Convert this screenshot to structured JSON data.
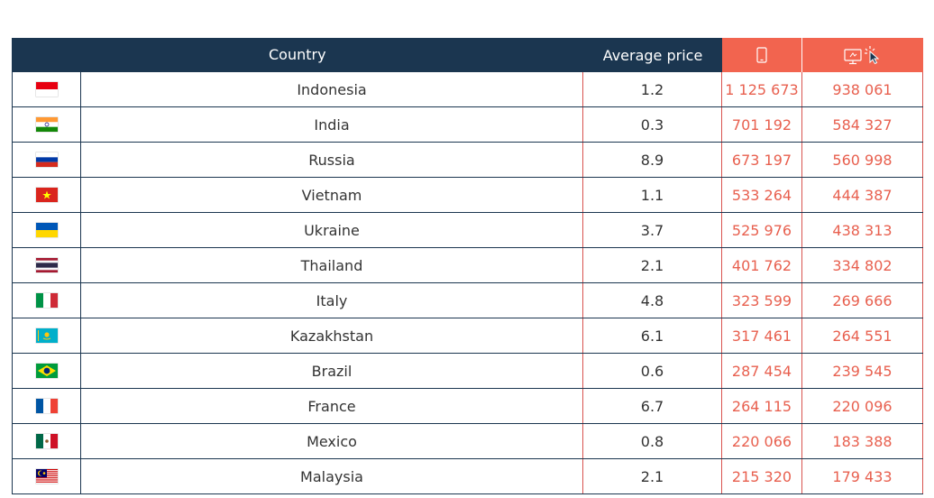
{
  "header": {
    "country_label": "Country",
    "avg_price_label": "Average price",
    "mobile_icon": "mobile-phone-icon",
    "desktop_icon": "desktop-click-icon",
    "bg_color": "#1b3650",
    "accent_color": "#f2644f"
  },
  "rows": [
    {
      "flag": "indonesia",
      "country": "Indonesia",
      "avg": "1.2",
      "mobile": "1 125 673",
      "desktop": "938 061"
    },
    {
      "flag": "india",
      "country": "India",
      "avg": "0.3",
      "mobile": "701 192",
      "desktop": "584 327"
    },
    {
      "flag": "russia",
      "country": "Russia",
      "avg": "8.9",
      "mobile": "673 197",
      "desktop": "560 998"
    },
    {
      "flag": "vietnam",
      "country": "Vietnam",
      "avg": "1.1",
      "mobile": "533 264",
      "desktop": "444 387"
    },
    {
      "flag": "ukraine",
      "country": "Ukraine",
      "avg": "3.7",
      "mobile": "525 976",
      "desktop": "438 313"
    },
    {
      "flag": "thailand",
      "country": "Thailand",
      "avg": "2.1",
      "mobile": "401 762",
      "desktop": "334 802"
    },
    {
      "flag": "italy",
      "country": "Italy",
      "avg": "4.8",
      "mobile": "323 599",
      "desktop": "269 666"
    },
    {
      "flag": "kazakhstan",
      "country": "Kazakhstan",
      "avg": "6.1",
      "mobile": "317 461",
      "desktop": "264 551"
    },
    {
      "flag": "brazil",
      "country": "Brazil",
      "avg": "0.6",
      "mobile": "287 454",
      "desktop": "239 545"
    },
    {
      "flag": "france",
      "country": "France",
      "avg": "6.7",
      "mobile": "264 115",
      "desktop": "220 096"
    },
    {
      "flag": "mexico",
      "country": "Mexico",
      "avg": "0.8",
      "mobile": "220 066",
      "desktop": "183 388"
    },
    {
      "flag": "malaysia",
      "country": "Malaysia",
      "avg": "2.1",
      "mobile": "215 320",
      "desktop": "179 433"
    }
  ]
}
